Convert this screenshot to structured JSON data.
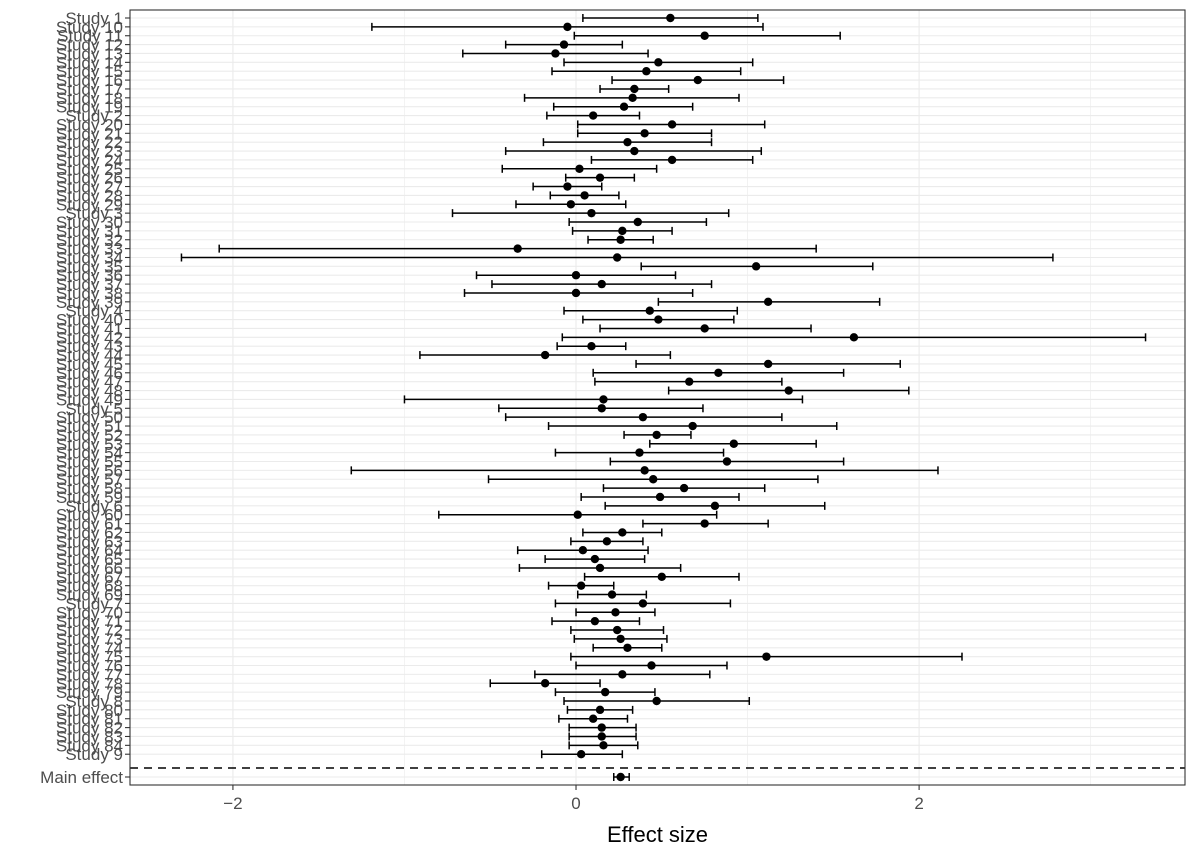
{
  "chart_data": {
    "type": "forest",
    "xlabel": "Effect size",
    "ylabel": "",
    "xlim": [
      -2.6,
      3.55
    ],
    "x_ticks": [
      -2,
      0,
      2
    ],
    "x_tick_labels": [
      "−2",
      "0",
      "2"
    ],
    "grid": true,
    "legend": "none",
    "separator": {
      "style": "dashed",
      "position": "above-main-effect"
    },
    "studies": [
      {
        "label": "Study 1",
        "estimate": 0.55,
        "lower": 0.04,
        "upper": 1.06
      },
      {
        "label": "Study 10",
        "estimate": -0.05,
        "lower": -1.19,
        "upper": 1.09
      },
      {
        "label": "Study 11",
        "estimate": 0.75,
        "lower": -0.01,
        "upper": 1.54
      },
      {
        "label": "Study 12",
        "estimate": -0.07,
        "lower": -0.41,
        "upper": 0.27
      },
      {
        "label": "Study 13",
        "estimate": -0.12,
        "lower": -0.66,
        "upper": 0.42
      },
      {
        "label": "Study 14",
        "estimate": 0.48,
        "lower": -0.07,
        "upper": 1.03
      },
      {
        "label": "Study 15",
        "estimate": 0.41,
        "lower": -0.14,
        "upper": 0.96
      },
      {
        "label": "Study 16",
        "estimate": 0.71,
        "lower": 0.21,
        "upper": 1.21
      },
      {
        "label": "Study 17",
        "estimate": 0.34,
        "lower": 0.14,
        "upper": 0.54
      },
      {
        "label": "Study 18",
        "estimate": 0.33,
        "lower": -0.3,
        "upper": 0.95
      },
      {
        "label": "Study 19",
        "estimate": 0.28,
        "lower": -0.13,
        "upper": 0.68
      },
      {
        "label": "Study 2",
        "estimate": 0.1,
        "lower": -0.17,
        "upper": 0.37
      },
      {
        "label": "Study 20",
        "estimate": 0.56,
        "lower": 0.01,
        "upper": 1.1
      },
      {
        "label": "Study 21",
        "estimate": 0.4,
        "lower": 0.01,
        "upper": 0.79
      },
      {
        "label": "Study 22",
        "estimate": 0.3,
        "lower": -0.19,
        "upper": 0.79
      },
      {
        "label": "Study 23",
        "estimate": 0.34,
        "lower": -0.41,
        "upper": 1.08
      },
      {
        "label": "Study 24",
        "estimate": 0.56,
        "lower": 0.09,
        "upper": 1.03
      },
      {
        "label": "Study 25",
        "estimate": 0.02,
        "lower": -0.43,
        "upper": 0.47
      },
      {
        "label": "Study 26",
        "estimate": 0.14,
        "lower": -0.06,
        "upper": 0.34
      },
      {
        "label": "Study 27",
        "estimate": -0.05,
        "lower": -0.25,
        "upper": 0.15
      },
      {
        "label": "Study 28",
        "estimate": 0.05,
        "lower": -0.15,
        "upper": 0.25
      },
      {
        "label": "Study 29",
        "estimate": -0.03,
        "lower": -0.35,
        "upper": 0.29
      },
      {
        "label": "Study 3",
        "estimate": 0.09,
        "lower": -0.72,
        "upper": 0.89
      },
      {
        "label": "Study 30",
        "estimate": 0.36,
        "lower": -0.04,
        "upper": 0.76
      },
      {
        "label": "Study 31",
        "estimate": 0.27,
        "lower": -0.02,
        "upper": 0.56
      },
      {
        "label": "Study 32",
        "estimate": 0.26,
        "lower": 0.07,
        "upper": 0.45
      },
      {
        "label": "Study 33",
        "estimate": -0.34,
        "lower": -2.08,
        "upper": 1.4
      },
      {
        "label": "Study 34",
        "estimate": 0.24,
        "lower": -2.3,
        "upper": 2.78
      },
      {
        "label": "Study 35",
        "estimate": 1.05,
        "lower": 0.38,
        "upper": 1.73
      },
      {
        "label": "Study 36",
        "estimate": 0.0,
        "lower": -0.58,
        "upper": 0.58
      },
      {
        "label": "Study 37",
        "estimate": 0.15,
        "lower": -0.49,
        "upper": 0.79
      },
      {
        "label": "Study 38",
        "estimate": 0.0,
        "lower": -0.65,
        "upper": 0.68
      },
      {
        "label": "Study 39",
        "estimate": 1.12,
        "lower": 0.48,
        "upper": 1.77
      },
      {
        "label": "Study 4",
        "estimate": 0.43,
        "lower": -0.07,
        "upper": 0.94
      },
      {
        "label": "Study 40",
        "estimate": 0.48,
        "lower": 0.04,
        "upper": 0.92
      },
      {
        "label": "Study 41",
        "estimate": 0.75,
        "lower": 0.14,
        "upper": 1.37
      },
      {
        "label": "Study 42",
        "estimate": 1.62,
        "lower": -0.08,
        "upper": 3.32
      },
      {
        "label": "Study 43",
        "estimate": 0.09,
        "lower": -0.11,
        "upper": 0.29
      },
      {
        "label": "Study 44",
        "estimate": -0.18,
        "lower": -0.91,
        "upper": 0.55
      },
      {
        "label": "Study 45",
        "estimate": 1.12,
        "lower": 0.35,
        "upper": 1.89
      },
      {
        "label": "Study 46",
        "estimate": 0.83,
        "lower": 0.1,
        "upper": 1.56
      },
      {
        "label": "Study 47",
        "estimate": 0.66,
        "lower": 0.11,
        "upper": 1.2
      },
      {
        "label": "Study 48",
        "estimate": 1.24,
        "lower": 0.54,
        "upper": 1.94
      },
      {
        "label": "Study 49",
        "estimate": 0.16,
        "lower": -1.0,
        "upper": 1.32
      },
      {
        "label": "Study 5",
        "estimate": 0.15,
        "lower": -0.45,
        "upper": 0.74
      },
      {
        "label": "Study 50",
        "estimate": 0.39,
        "lower": -0.41,
        "upper": 1.2
      },
      {
        "label": "Study 51",
        "estimate": 0.68,
        "lower": -0.16,
        "upper": 1.52
      },
      {
        "label": "Study 52",
        "estimate": 0.47,
        "lower": 0.28,
        "upper": 0.67
      },
      {
        "label": "Study 53",
        "estimate": 0.92,
        "lower": 0.43,
        "upper": 1.4
      },
      {
        "label": "Study 54",
        "estimate": 0.37,
        "lower": -0.12,
        "upper": 0.86
      },
      {
        "label": "Study 55",
        "estimate": 0.88,
        "lower": 0.2,
        "upper": 1.56
      },
      {
        "label": "Study 56",
        "estimate": 0.4,
        "lower": -1.31,
        "upper": 2.11
      },
      {
        "label": "Study 57",
        "estimate": 0.45,
        "lower": -0.51,
        "upper": 1.41
      },
      {
        "label": "Study 58",
        "estimate": 0.63,
        "lower": 0.16,
        "upper": 1.1
      },
      {
        "label": "Study 59",
        "estimate": 0.49,
        "lower": 0.03,
        "upper": 0.95
      },
      {
        "label": "Study 6",
        "estimate": 0.81,
        "lower": 0.17,
        "upper": 1.45
      },
      {
        "label": "Study 60",
        "estimate": 0.01,
        "lower": -0.8,
        "upper": 0.82
      },
      {
        "label": "Study 61",
        "estimate": 0.75,
        "lower": 0.39,
        "upper": 1.12
      },
      {
        "label": "Study 62",
        "estimate": 0.27,
        "lower": 0.04,
        "upper": 0.5
      },
      {
        "label": "Study 63",
        "estimate": 0.18,
        "lower": -0.03,
        "upper": 0.39
      },
      {
        "label": "Study 64",
        "estimate": 0.04,
        "lower": -0.34,
        "upper": 0.42
      },
      {
        "label": "Study 65",
        "estimate": 0.11,
        "lower": -0.18,
        "upper": 0.4
      },
      {
        "label": "Study 66",
        "estimate": 0.14,
        "lower": -0.33,
        "upper": 0.61
      },
      {
        "label": "Study 67",
        "estimate": 0.5,
        "lower": 0.05,
        "upper": 0.95
      },
      {
        "label": "Study 68",
        "estimate": 0.03,
        "lower": -0.16,
        "upper": 0.22
      },
      {
        "label": "Study 69",
        "estimate": 0.21,
        "lower": 0.01,
        "upper": 0.41
      },
      {
        "label": "Study 7",
        "estimate": 0.39,
        "lower": -0.12,
        "upper": 0.9
      },
      {
        "label": "Study 70",
        "estimate": 0.23,
        "lower": 0.0,
        "upper": 0.46
      },
      {
        "label": "Study 71",
        "estimate": 0.11,
        "lower": -0.14,
        "upper": 0.37
      },
      {
        "label": "Study 72",
        "estimate": 0.24,
        "lower": -0.03,
        "upper": 0.51
      },
      {
        "label": "Study 73",
        "estimate": 0.26,
        "lower": -0.01,
        "upper": 0.53
      },
      {
        "label": "Study 74",
        "estimate": 0.3,
        "lower": 0.1,
        "upper": 0.5
      },
      {
        "label": "Study 75",
        "estimate": 1.11,
        "lower": -0.03,
        "upper": 2.25
      },
      {
        "label": "Study 76",
        "estimate": 0.44,
        "lower": 0.0,
        "upper": 0.88
      },
      {
        "label": "Study 77",
        "estimate": 0.27,
        "lower": -0.24,
        "upper": 0.78
      },
      {
        "label": "Study 78",
        "estimate": -0.18,
        "lower": -0.5,
        "upper": 0.14
      },
      {
        "label": "Study 79",
        "estimate": 0.17,
        "lower": -0.12,
        "upper": 0.46
      },
      {
        "label": "Study 8",
        "estimate": 0.47,
        "lower": -0.07,
        "upper": 1.01
      },
      {
        "label": "Study 80",
        "estimate": 0.14,
        "lower": -0.05,
        "upper": 0.33
      },
      {
        "label": "Study 81",
        "estimate": 0.1,
        "lower": -0.1,
        "upper": 0.3
      },
      {
        "label": "Study 82",
        "estimate": 0.15,
        "lower": -0.04,
        "upper": 0.35
      },
      {
        "label": "Study 83",
        "estimate": 0.15,
        "lower": -0.04,
        "upper": 0.35
      },
      {
        "label": "Study 84",
        "estimate": 0.16,
        "lower": -0.04,
        "upper": 0.36
      },
      {
        "label": "Study 9",
        "estimate": 0.03,
        "lower": -0.2,
        "upper": 0.27
      }
    ],
    "main_effect": {
      "label": "Main effect",
      "estimate": 0.26,
      "lower": 0.22,
      "upper": 0.31
    }
  },
  "colors": {
    "background": "#ffffff",
    "gridline": "#ebebeb",
    "ink": "#000000",
    "axis_text": "#4d4d4d",
    "panel_border": "#333333"
  }
}
